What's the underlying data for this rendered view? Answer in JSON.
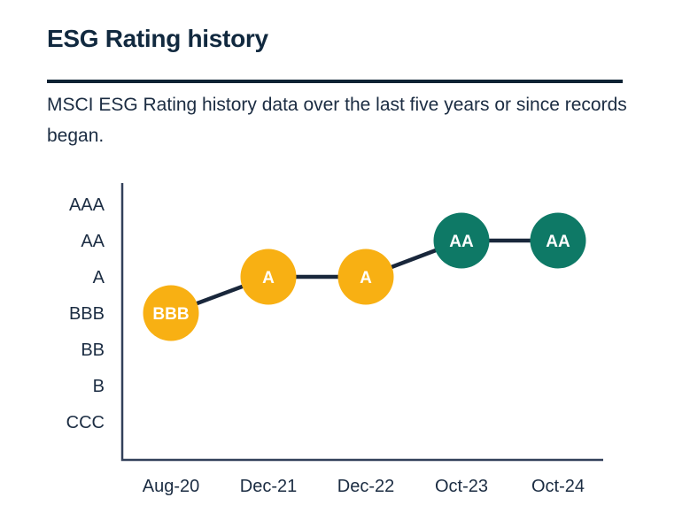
{
  "header": {
    "title": "ESG Rating history",
    "subtitle": "MSCI ESG Rating history data over the last five years or since records began."
  },
  "colors": {
    "background": "#FFFFFF",
    "title_text": "#11293F",
    "body_text": "#1B2C42",
    "divider": "#0C2233",
    "axis": "#32405A",
    "connector_line": "#19273B",
    "marker_yellow": "#F8B013",
    "marker_teal": "#0E7966",
    "marker_label_text": "#FFFFFF"
  },
  "chart_data": {
    "type": "line",
    "title": "ESG Rating history",
    "x": [
      "Aug-20",
      "Dec-21",
      "Dec-22",
      "Oct-23",
      "Oct-24"
    ],
    "y_categories": [
      "AAA",
      "AA",
      "A",
      "BBB",
      "BB",
      "B",
      "CCC"
    ],
    "series": [
      {
        "name": "MSCI ESG Rating",
        "values": [
          "BBB",
          "A",
          "A",
          "AA",
          "AA"
        ]
      }
    ],
    "point_colors": [
      "#F8B013",
      "#F8B013",
      "#F8B013",
      "#0E7966",
      "#0E7966"
    ],
    "grid": false,
    "legend": "none",
    "xlabel": "",
    "ylabel": ""
  }
}
